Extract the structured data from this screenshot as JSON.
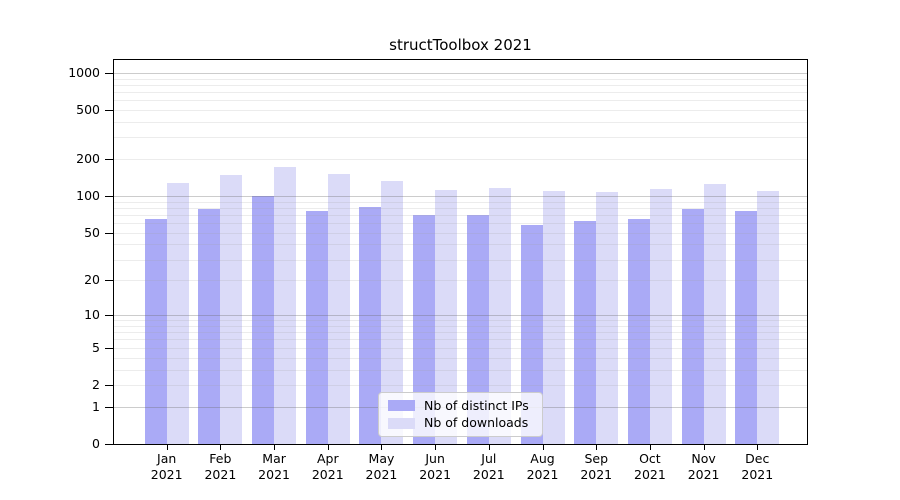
{
  "title": "structToolbox 2021",
  "legend": {
    "items": [
      {
        "label": "Nb of distinct IPs"
      },
      {
        "label": "Nb of downloads"
      }
    ]
  },
  "chart_data": {
    "type": "bar",
    "title": "structToolbox 2021",
    "categories": [
      "Jan 2021",
      "Feb 2021",
      "Mar 2021",
      "Apr 2021",
      "May 2021",
      "Jun 2021",
      "Jul 2021",
      "Aug 2021",
      "Sep 2021",
      "Oct 2021",
      "Nov 2021",
      "Dec 2021"
    ],
    "series": [
      {
        "name": "Nb of distinct IPs",
        "color": "#aaaaf6",
        "values": [
          65,
          78,
          100,
          76,
          82,
          70,
          70,
          58,
          62,
          65,
          78,
          75
        ]
      },
      {
        "name": "Nb of downloads",
        "color": "#dbdbf8",
        "values": [
          128,
          148,
          173,
          151,
          133,
          112,
          117,
          110,
          108,
          114,
          125,
          111
        ]
      }
    ],
    "y_scale": "log1p",
    "y_ticks": [
      0,
      1,
      2,
      5,
      10,
      20,
      50,
      100,
      200,
      500,
      1000
    ],
    "y_grid_major": [
      1,
      10,
      100,
      1000
    ],
    "ylim": [
      0,
      1300
    ],
    "xlabel": "",
    "ylabel": "",
    "grid": true,
    "legend_position": "bottom-center"
  }
}
